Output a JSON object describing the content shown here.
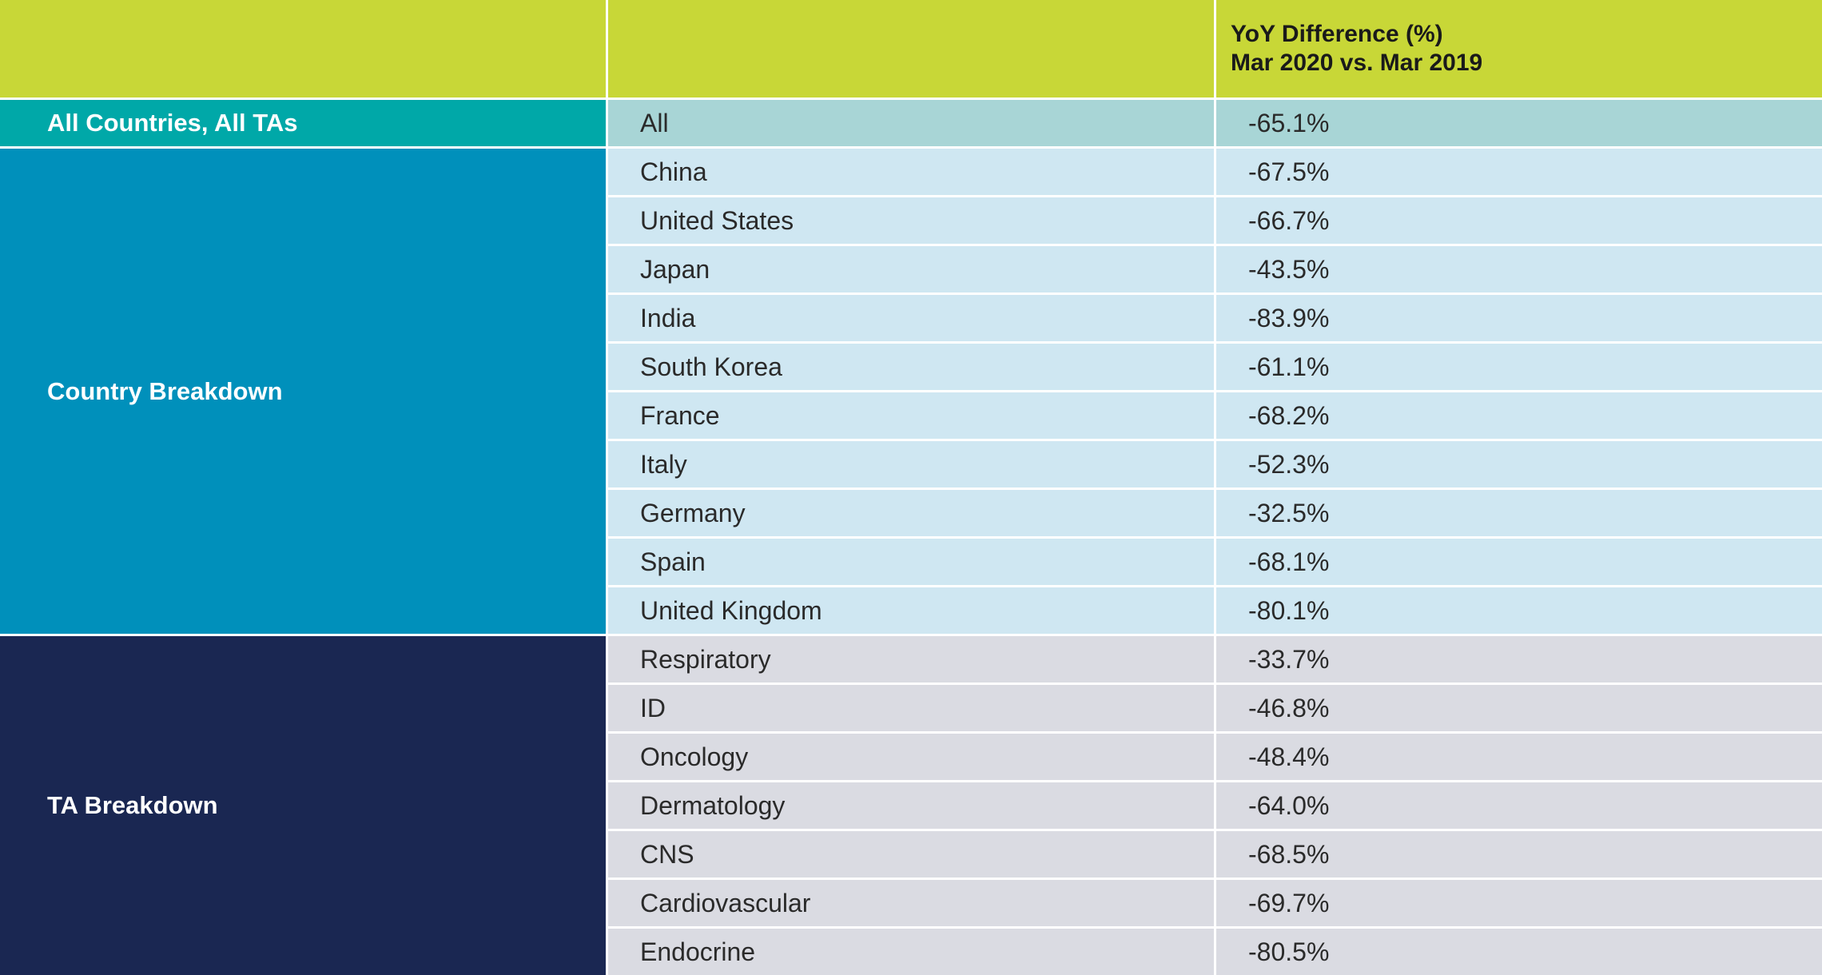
{
  "header": {
    "line1": "YoY Difference (%)",
    "line2": "Mar 2020 vs. Mar 2019"
  },
  "groups": {
    "all": {
      "label": "All Countries, All TAs",
      "color": "#00a8a8"
    },
    "country": {
      "label": "Country Breakdown",
      "color": "#0090bb"
    },
    "ta": {
      "label": "TA Breakdown",
      "color": "#1a2752"
    }
  },
  "chart_data": {
    "type": "table",
    "columns": [
      "",
      "",
      "YoY Difference (%)\nMar 2020 vs. Mar 2019"
    ],
    "rows": [
      {
        "group": "all",
        "label": "All",
        "value": "-65.1%"
      },
      {
        "group": "country",
        "label": "China",
        "value": "-67.5%"
      },
      {
        "group": "country",
        "label": "United States",
        "value": "-66.7%"
      },
      {
        "group": "country",
        "label": "Japan",
        "value": "-43.5%"
      },
      {
        "group": "country",
        "label": "India",
        "value": "-83.9%"
      },
      {
        "group": "country",
        "label": "South Korea",
        "value": "-61.1%"
      },
      {
        "group": "country",
        "label": "France",
        "value": "-68.2%"
      },
      {
        "group": "country",
        "label": "Italy",
        "value": "-52.3%"
      },
      {
        "group": "country",
        "label": "Germany",
        "value": "-32.5%"
      },
      {
        "group": "country",
        "label": "Spain",
        "value": "-68.1%"
      },
      {
        "group": "country",
        "label": "United Kingdom",
        "value": "-80.1%"
      },
      {
        "group": "ta",
        "label": "Respiratory",
        "value": "-33.7%"
      },
      {
        "group": "ta",
        "label": "ID",
        "value": "-46.8%"
      },
      {
        "group": "ta",
        "label": "Oncology",
        "value": "-48.4%"
      },
      {
        "group": "ta",
        "label": "Dermatology",
        "value": "-64.0%"
      },
      {
        "group": "ta",
        "label": "CNS",
        "value": "-68.5%"
      },
      {
        "group": "ta",
        "label": "Cardiovascular",
        "value": "-69.7%"
      },
      {
        "group": "ta",
        "label": "Endocrine",
        "value": "-80.5%"
      }
    ]
  }
}
